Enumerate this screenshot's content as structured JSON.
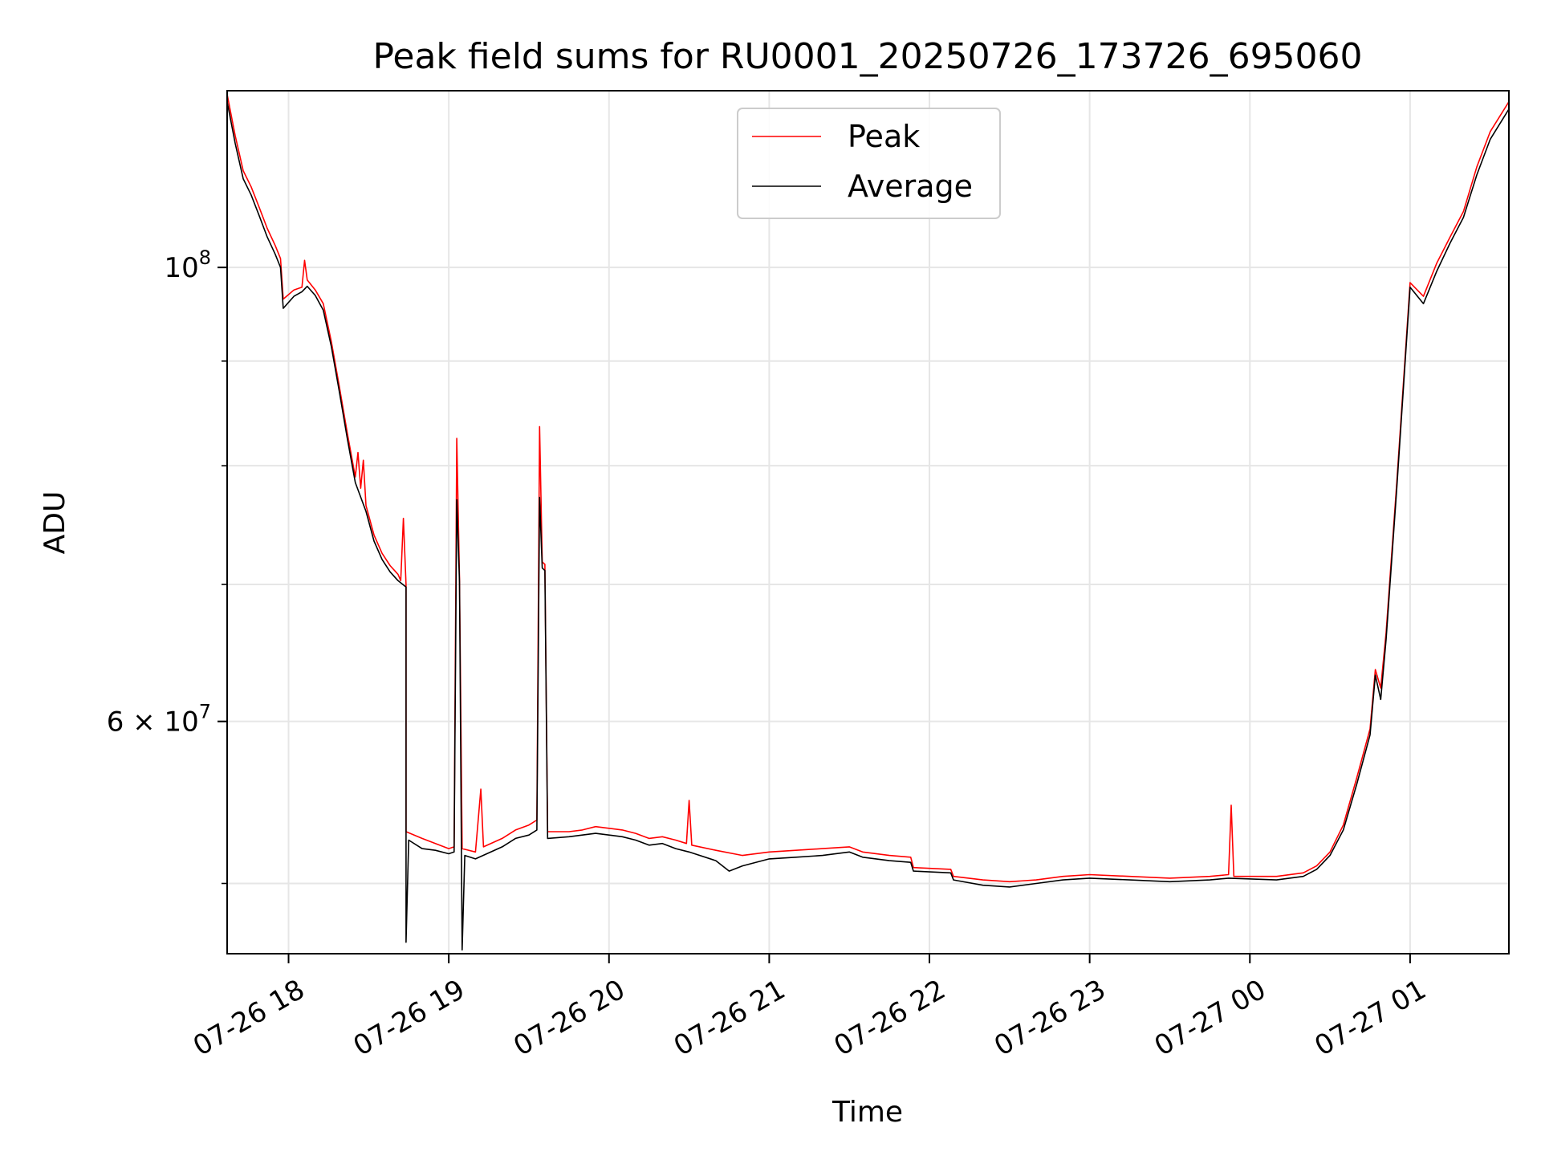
{
  "chart_data": {
    "type": "line",
    "title": "Peak field sums for RU0001_20250726_173726_695060",
    "xlabel": "Time",
    "ylabel": "ADU",
    "y_scale": "log",
    "xlim": [
      "2025-07-26 17:37",
      "2025-07-27 01:37"
    ],
    "ylim": [
      46200000,
      122000000
    ],
    "grid": true,
    "legend_position": "top-center",
    "x_ticks": [
      {
        "time": "2025-07-26 18:00",
        "label": "07-26 18"
      },
      {
        "time": "2025-07-26 19:00",
        "label": "07-26 19"
      },
      {
        "time": "2025-07-26 20:00",
        "label": "07-26 20"
      },
      {
        "time": "2025-07-26 21:00",
        "label": "07-26 21"
      },
      {
        "time": "2025-07-26 22:00",
        "label": "07-26 22"
      },
      {
        "time": "2025-07-26 23:00",
        "label": "07-26 23"
      },
      {
        "time": "2025-07-27 00:00",
        "label": "07-27 00"
      },
      {
        "time": "2025-07-27 01:00",
        "label": "07-27 01"
      }
    ],
    "y_major_ticks": [
      {
        "value": 100000000,
        "mantissa": "",
        "base": "10",
        "exp": "8"
      },
      {
        "value": 60000000,
        "mantissa": "6 × ",
        "base": "10",
        "exp": "7"
      }
    ],
    "y_minor_ticks": [
      50000000,
      70000000,
      80000000,
      90000000
    ],
    "series": [
      {
        "name": "Peak",
        "color": "#ff0000",
        "points": [
          [
            "2025-07-26 17:37",
            121500000
          ],
          [
            "2025-07-26 17:40",
            116000000
          ],
          [
            "2025-07-26 17:43",
            111500000
          ],
          [
            "2025-07-26 17:46",
            109500000
          ],
          [
            "2025-07-26 17:49",
            107000000
          ],
          [
            "2025-07-26 17:52",
            104500000
          ],
          [
            "2025-07-26 17:55",
            102500000
          ],
          [
            "2025-07-26 17:57",
            101000000
          ],
          [
            "2025-07-26 17:58",
            96500000
          ],
          [
            "2025-07-26 18:02",
            97500000
          ],
          [
            "2025-07-26 18:05",
            97800000
          ],
          [
            "2025-07-26 18:06",
            100800000
          ],
          [
            "2025-07-26 18:07",
            98600000
          ],
          [
            "2025-07-26 18:10",
            97500000
          ],
          [
            "2025-07-26 18:13",
            96000000
          ],
          [
            "2025-07-26 18:16",
            92000000
          ],
          [
            "2025-07-26 18:19",
            87500000
          ],
          [
            "2025-07-26 18:22",
            83000000
          ],
          [
            "2025-07-26 18:25",
            79000000
          ],
          [
            "2025-07-26 18:26",
            81200000
          ],
          [
            "2025-07-26 18:27",
            78000000
          ],
          [
            "2025-07-26 18:28",
            80500000
          ],
          [
            "2025-07-26 18:29",
            76500000
          ],
          [
            "2025-07-26 18:32",
            74000000
          ],
          [
            "2025-07-26 18:35",
            72500000
          ],
          [
            "2025-07-26 18:38",
            71500000
          ],
          [
            "2025-07-26 18:41",
            70800000
          ],
          [
            "2025-07-26 18:42",
            70300000
          ],
          [
            "2025-07-26 18:43",
            75400000
          ],
          [
            "2025-07-26 18:44",
            70000000
          ],
          [
            "2025-07-26 18:44",
            53000000
          ],
          [
            "2025-07-26 18:50",
            52600000
          ],
          [
            "2025-07-26 18:55",
            52300000
          ],
          [
            "2025-07-26 19:00",
            52000000
          ],
          [
            "2025-07-26 19:02",
            52100000
          ],
          [
            "2025-07-26 19:03",
            82500000
          ],
          [
            "2025-07-26 19:04",
            70500000
          ],
          [
            "2025-07-26 19:05",
            52000000
          ],
          [
            "2025-07-26 19:10",
            51800000
          ],
          [
            "2025-07-26 19:12",
            55600000
          ],
          [
            "2025-07-26 19:13",
            52100000
          ],
          [
            "2025-07-26 19:20",
            52600000
          ],
          [
            "2025-07-26 19:25",
            53100000
          ],
          [
            "2025-07-26 19:30",
            53400000
          ],
          [
            "2025-07-26 19:33",
            53700000
          ],
          [
            "2025-07-26 19:34",
            83600000
          ],
          [
            "2025-07-26 19:35",
            71800000
          ],
          [
            "2025-07-26 19:36",
            71600000
          ],
          [
            "2025-07-26 19:37",
            53000000
          ],
          [
            "2025-07-26 19:45",
            53000000
          ],
          [
            "2025-07-26 19:50",
            53100000
          ],
          [
            "2025-07-26 19:55",
            53300000
          ],
          [
            "2025-07-26 20:00",
            53200000
          ],
          [
            "2025-07-26 20:05",
            53100000
          ],
          [
            "2025-07-26 20:10",
            52900000
          ],
          [
            "2025-07-26 20:15",
            52600000
          ],
          [
            "2025-07-26 20:20",
            52700000
          ],
          [
            "2025-07-26 20:25",
            52500000
          ],
          [
            "2025-07-26 20:29",
            52300000
          ],
          [
            "2025-07-26 20:30",
            54900000
          ],
          [
            "2025-07-26 20:31",
            52200000
          ],
          [
            "2025-07-26 20:40",
            51900000
          ],
          [
            "2025-07-26 20:50",
            51600000
          ],
          [
            "2025-07-26 21:00",
            51800000
          ],
          [
            "2025-07-26 21:10",
            51900000
          ],
          [
            "2025-07-26 21:20",
            52000000
          ],
          [
            "2025-07-26 21:30",
            52100000
          ],
          [
            "2025-07-26 21:35",
            51800000
          ],
          [
            "2025-07-26 21:45",
            51600000
          ],
          [
            "2025-07-26 21:53",
            51500000
          ],
          [
            "2025-07-26 21:54",
            50900000
          ],
          [
            "2025-07-26 22:08",
            50800000
          ],
          [
            "2025-07-26 22:09",
            50400000
          ],
          [
            "2025-07-26 22:20",
            50200000
          ],
          [
            "2025-07-26 22:30",
            50100000
          ],
          [
            "2025-07-26 22:40",
            50200000
          ],
          [
            "2025-07-26 22:50",
            50400000
          ],
          [
            "2025-07-26 23:00",
            50500000
          ],
          [
            "2025-07-26 23:15",
            50400000
          ],
          [
            "2025-07-26 23:30",
            50300000
          ],
          [
            "2025-07-26 23:45",
            50400000
          ],
          [
            "2025-07-26 23:52",
            50500000
          ],
          [
            "2025-07-26 23:53",
            54600000
          ],
          [
            "2025-07-26 23:54",
            50400000
          ],
          [
            "2025-07-27 00:10",
            50400000
          ],
          [
            "2025-07-27 00:20",
            50600000
          ],
          [
            "2025-07-27 00:25",
            51000000
          ],
          [
            "2025-07-27 00:30",
            51800000
          ],
          [
            "2025-07-27 00:35",
            53400000
          ],
          [
            "2025-07-27 00:40",
            56300000
          ],
          [
            "2025-07-27 00:45",
            59500000
          ],
          [
            "2025-07-27 00:47",
            63600000
          ],
          [
            "2025-07-27 00:49",
            62300000
          ],
          [
            "2025-07-27 00:51",
            66300000
          ],
          [
            "2025-07-27 00:55",
            78500000
          ],
          [
            "2025-07-27 01:00",
            98300000
          ],
          [
            "2025-07-27 01:05",
            96800000
          ],
          [
            "2025-07-27 01:10",
            100500000
          ],
          [
            "2025-07-27 01:15",
            103500000
          ],
          [
            "2025-07-27 01:20",
            106500000
          ],
          [
            "2025-07-27 01:25",
            112000000
          ],
          [
            "2025-07-27 01:30",
            116500000
          ],
          [
            "2025-07-27 01:37",
            120500000
          ]
        ]
      },
      {
        "name": "Average",
        "color": "#000000",
        "points": [
          [
            "2025-07-26 17:37",
            120500000
          ],
          [
            "2025-07-26 17:40",
            115000000
          ],
          [
            "2025-07-26 17:43",
            110500000
          ],
          [
            "2025-07-26 17:46",
            108500000
          ],
          [
            "2025-07-26 17:49",
            106000000
          ],
          [
            "2025-07-26 17:52",
            103500000
          ],
          [
            "2025-07-26 17:55",
            101500000
          ],
          [
            "2025-07-26 17:57",
            100000000
          ],
          [
            "2025-07-26 17:58",
            95500000
          ],
          [
            "2025-07-26 18:02",
            96800000
          ],
          [
            "2025-07-26 18:05",
            97300000
          ],
          [
            "2025-07-26 18:07",
            97900000
          ],
          [
            "2025-07-26 18:10",
            96900000
          ],
          [
            "2025-07-26 18:13",
            95300000
          ],
          [
            "2025-07-26 18:16",
            91500000
          ],
          [
            "2025-07-26 18:19",
            87000000
          ],
          [
            "2025-07-26 18:22",
            82500000
          ],
          [
            "2025-07-26 18:25",
            78500000
          ],
          [
            "2025-07-26 18:29",
            76000000
          ],
          [
            "2025-07-26 18:32",
            73500000
          ],
          [
            "2025-07-26 18:35",
            72000000
          ],
          [
            "2025-07-26 18:38",
            71000000
          ],
          [
            "2025-07-26 18:41",
            70300000
          ],
          [
            "2025-07-26 18:44",
            69800000
          ],
          [
            "2025-07-26 18:44",
            46800000
          ],
          [
            "2025-07-26 18:45",
            52500000
          ],
          [
            "2025-07-26 18:50",
            52000000
          ],
          [
            "2025-07-26 18:55",
            51900000
          ],
          [
            "2025-07-26 19:00",
            51700000
          ],
          [
            "2025-07-26 19:02",
            51800000
          ],
          [
            "2025-07-26 19:03",
            77000000
          ],
          [
            "2025-07-26 19:04",
            70200000
          ],
          [
            "2025-07-26 19:05",
            46400000
          ],
          [
            "2025-07-26 19:06",
            51600000
          ],
          [
            "2025-07-26 19:10",
            51400000
          ],
          [
            "2025-07-26 19:20",
            52100000
          ],
          [
            "2025-07-26 19:25",
            52600000
          ],
          [
            "2025-07-26 19:30",
            52800000
          ],
          [
            "2025-07-26 19:33",
            53100000
          ],
          [
            "2025-07-26 19:34",
            77200000
          ],
          [
            "2025-07-26 19:35",
            71300000
          ],
          [
            "2025-07-26 19:36",
            71100000
          ],
          [
            "2025-07-26 19:37",
            52600000
          ],
          [
            "2025-07-26 19:45",
            52700000
          ],
          [
            "2025-07-26 19:50",
            52800000
          ],
          [
            "2025-07-26 19:55",
            52900000
          ],
          [
            "2025-07-26 20:00",
            52800000
          ],
          [
            "2025-07-26 20:05",
            52700000
          ],
          [
            "2025-07-26 20:10",
            52500000
          ],
          [
            "2025-07-26 20:15",
            52200000
          ],
          [
            "2025-07-26 20:20",
            52300000
          ],
          [
            "2025-07-26 20:25",
            52000000
          ],
          [
            "2025-07-26 20:30",
            51800000
          ],
          [
            "2025-07-26 20:40",
            51300000
          ],
          [
            "2025-07-26 20:45",
            50700000
          ],
          [
            "2025-07-26 20:50",
            51000000
          ],
          [
            "2025-07-26 21:00",
            51400000
          ],
          [
            "2025-07-26 21:10",
            51500000
          ],
          [
            "2025-07-26 21:20",
            51600000
          ],
          [
            "2025-07-26 21:30",
            51800000
          ],
          [
            "2025-07-26 21:35",
            51500000
          ],
          [
            "2025-07-26 21:45",
            51300000
          ],
          [
            "2025-07-26 21:53",
            51200000
          ],
          [
            "2025-07-26 21:54",
            50700000
          ],
          [
            "2025-07-26 22:08",
            50600000
          ],
          [
            "2025-07-26 22:09",
            50200000
          ],
          [
            "2025-07-26 22:20",
            49900000
          ],
          [
            "2025-07-26 22:30",
            49800000
          ],
          [
            "2025-07-26 22:40",
            50000000
          ],
          [
            "2025-07-26 22:50",
            50200000
          ],
          [
            "2025-07-26 23:00",
            50300000
          ],
          [
            "2025-07-26 23:15",
            50200000
          ],
          [
            "2025-07-26 23:30",
            50100000
          ],
          [
            "2025-07-26 23:45",
            50200000
          ],
          [
            "2025-07-26 23:52",
            50300000
          ],
          [
            "2025-07-27 00:10",
            50200000
          ],
          [
            "2025-07-27 00:20",
            50400000
          ],
          [
            "2025-07-27 00:25",
            50800000
          ],
          [
            "2025-07-27 00:30",
            51600000
          ],
          [
            "2025-07-27 00:35",
            53100000
          ],
          [
            "2025-07-27 00:40",
            55900000
          ],
          [
            "2025-07-27 00:45",
            59100000
          ],
          [
            "2025-07-27 00:47",
            63200000
          ],
          [
            "2025-07-27 00:49",
            61500000
          ],
          [
            "2025-07-27 00:51",
            65800000
          ],
          [
            "2025-07-27 00:55",
            78000000
          ],
          [
            "2025-07-27 01:00",
            97800000
          ],
          [
            "2025-07-27 01:05",
            96000000
          ],
          [
            "2025-07-27 01:10",
            99600000
          ],
          [
            "2025-07-27 01:15",
            102800000
          ],
          [
            "2025-07-27 01:20",
            105800000
          ],
          [
            "2025-07-27 01:25",
            111000000
          ],
          [
            "2025-07-27 01:30",
            115500000
          ],
          [
            "2025-07-27 01:37",
            119500000
          ]
        ]
      }
    ]
  }
}
